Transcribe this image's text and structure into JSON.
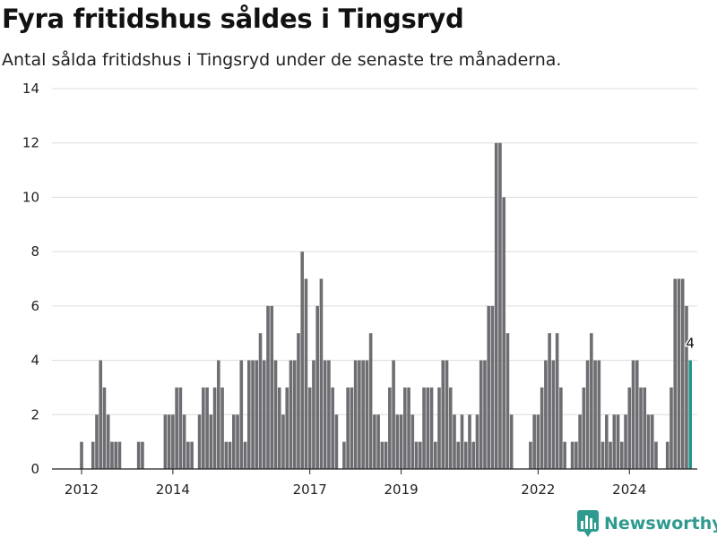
{
  "chart_data": {
    "type": "bar",
    "title": "Fyra fritidshus såldes i Tingsryd",
    "subtitle": "Antal sålda fritidshus i Tingsryd under de senaste tre månaderna.",
    "xlabel": "",
    "ylabel": "",
    "ylim": [
      0,
      14
    ],
    "yticks": [
      0,
      2,
      4,
      6,
      8,
      10,
      12,
      14
    ],
    "xticks": [
      {
        "label": "2012",
        "index": 0
      },
      {
        "label": "2014",
        "index": 24
      },
      {
        "label": "2017",
        "index": 60
      },
      {
        "label": "2019",
        "index": 84
      },
      {
        "label": "2022",
        "index": 120
      },
      {
        "label": "2024",
        "index": 144
      }
    ],
    "grid": true,
    "colors": {
      "bar": "#6e6d72",
      "highlight": "#22958a",
      "grid": "#dcdcdc"
    },
    "values": [
      1,
      0,
      0,
      1,
      2,
      4,
      3,
      2,
      1,
      1,
      1,
      0,
      0,
      0,
      0,
      1,
      1,
      0,
      0,
      0,
      0,
      0,
      2,
      2,
      2,
      3,
      3,
      2,
      1,
      1,
      0,
      2,
      3,
      3,
      2,
      3,
      4,
      3,
      1,
      1,
      2,
      2,
      4,
      1,
      4,
      4,
      4,
      5,
      4,
      6,
      6,
      4,
      3,
      2,
      3,
      4,
      4,
      5,
      8,
      7,
      3,
      4,
      6,
      7,
      4,
      4,
      3,
      2,
      0,
      1,
      3,
      3,
      4,
      4,
      4,
      4,
      5,
      2,
      2,
      1,
      1,
      3,
      4,
      2,
      2,
      3,
      3,
      2,
      1,
      1,
      3,
      3,
      3,
      1,
      3,
      4,
      4,
      3,
      2,
      1,
      2,
      1,
      2,
      1,
      2,
      4,
      4,
      6,
      6,
      12,
      12,
      10,
      5,
      2,
      0,
      0,
      0,
      0,
      1,
      2,
      2,
      3,
      4,
      5,
      4,
      5,
      3,
      1,
      0,
      1,
      1,
      2,
      3,
      4,
      5,
      4,
      4,
      1,
      2,
      1,
      2,
      2,
      1,
      2,
      3,
      4,
      4,
      3,
      3,
      2,
      2,
      1,
      0,
      0,
      1,
      3,
      7,
      7,
      7,
      6,
      4
    ],
    "highlight_index": 160,
    "data_labels": [
      {
        "index": 160,
        "text": "4"
      }
    ]
  },
  "branding": {
    "logo_text": "Newsworthy",
    "logo_icon": "bar-chart-icon"
  }
}
